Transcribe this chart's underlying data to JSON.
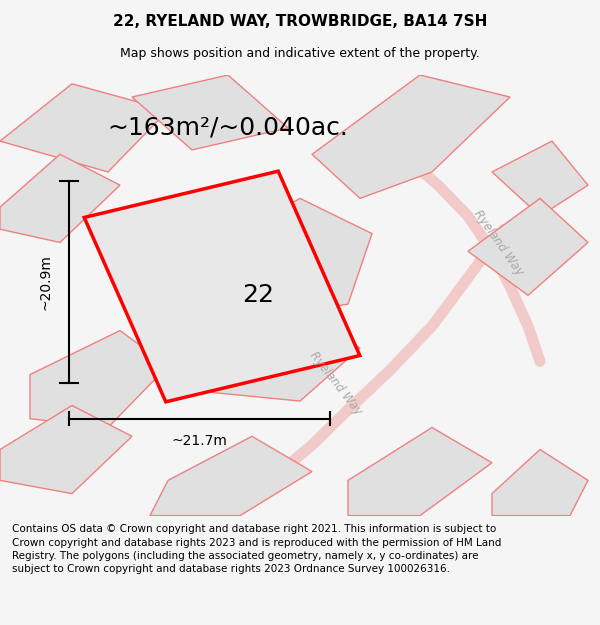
{
  "title_line1": "22, RYELAND WAY, TROWBRIDGE, BA14 7SH",
  "title_line2": "Map shows position and indicative extent of the property.",
  "area_text": "~163m²/~0.040ac.",
  "label_number": "22",
  "dim_horizontal": "~21.7m",
  "dim_vertical": "~20.9m",
  "road_label1": "Ryeland Way",
  "road_label2": "Ryeland Way",
  "footer_text": "Contains OS data © Crown copyright and database right 2021. This information is subject to Crown copyright and database rights 2023 and is reproduced with the permission of HM Land Registry. The polygons (including the associated geometry, namely x, y co-ordinates) are subject to Crown copyright and database rights 2023 Ordnance Survey 100026316.",
  "bg_color": "#f5f5f5",
  "map_bg": "#f0f0f0",
  "plot_color": "#ff0000",
  "plot_fill": "#e8e8e8",
  "neighbor_fill": "#e0e0e0",
  "neighbor_stroke": "#f08080",
  "road_color": "#ffffff",
  "title_fontsize": 11,
  "subtitle_fontsize": 9,
  "area_fontsize": 18,
  "label_fontsize": 18,
  "dim_fontsize": 10,
  "footer_fontsize": 7.5
}
